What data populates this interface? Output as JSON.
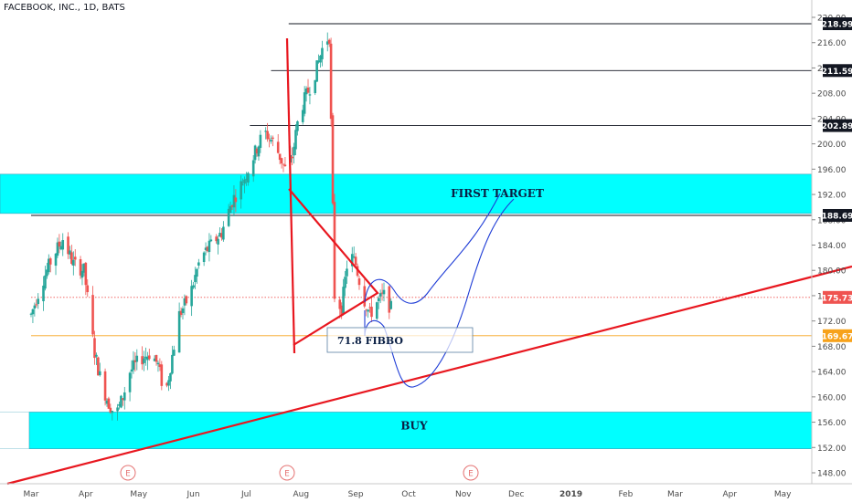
{
  "header": {
    "title": "FACEBOOK, INC., 1D, BATS"
  },
  "chart_data": {
    "type": "candlestick",
    "title": "FACEBOOK, INC., 1D, BATS",
    "x_tick_labels": [
      "Mar",
      "Apr",
      "May",
      "Jun",
      "Jul",
      "Aug",
      "Sep",
      "Oct",
      "Nov",
      "Dec",
      "2019",
      "Feb",
      "Mar",
      "Apr",
      "May"
    ],
    "y_range": [
      146,
      220
    ],
    "y_ticks": [
      148,
      152,
      156,
      160,
      164,
      168,
      172,
      176,
      180,
      184,
      188,
      192,
      196,
      200,
      204,
      208,
      212,
      216,
      220
    ],
    "price_labels": [
      {
        "label": "218.99",
        "value": 218.99,
        "bg": "#131722",
        "fg": "#ffffff"
      },
      {
        "label": "211.59",
        "value": 211.59,
        "bg": "#131722",
        "fg": "#ffffff"
      },
      {
        "label": "202.89",
        "value": 202.89,
        "bg": "#131722",
        "fg": "#ffffff"
      },
      {
        "label": "188.69",
        "value": 188.69,
        "bg": "#131722",
        "fg": "#ffffff"
      },
      {
        "label": "175.73",
        "value": 175.73,
        "bg": "#ef5350",
        "fg": "#ffffff"
      },
      {
        "label": "169.67",
        "value": 169.67,
        "bg": "#f7a21b",
        "fg": "#ffffff"
      }
    ],
    "horizontal_lines": [
      {
        "value": 218.99,
        "color": "#131722",
        "from_day": 146
      },
      {
        "value": 211.59,
        "color": "#131722",
        "from_day": 136
      },
      {
        "value": 202.89,
        "color": "#131722",
        "from_day": 124
      },
      {
        "value": 188.69,
        "color": "#131722",
        "from_day": 0
      },
      {
        "value": 175.73,
        "color": "#ef5350",
        "from_day": 0,
        "dotted": true
      },
      {
        "value": 169.67,
        "color": "#f7a21b",
        "from_day": 0
      }
    ],
    "zones": [
      {
        "label": "FIRST TARGET",
        "low": 189.0,
        "high": 195.2,
        "color": "#00ffff"
      },
      {
        "label": "BUY",
        "low": 151.8,
        "high": 157.6,
        "color": "#00ffff"
      }
    ],
    "fibbo_label": "71.8 FIBBO",
    "earnings_markers": [
      "E",
      "E",
      "E"
    ],
    "colors": {
      "up": "#26a69a",
      "down": "#ef5350",
      "trend": "#e8171f",
      "path": "#1e3cd6",
      "zone": "#00ffff"
    },
    "ohlc_hint": "daily candles Mar–Sep 2018, close ~175.73"
  }
}
